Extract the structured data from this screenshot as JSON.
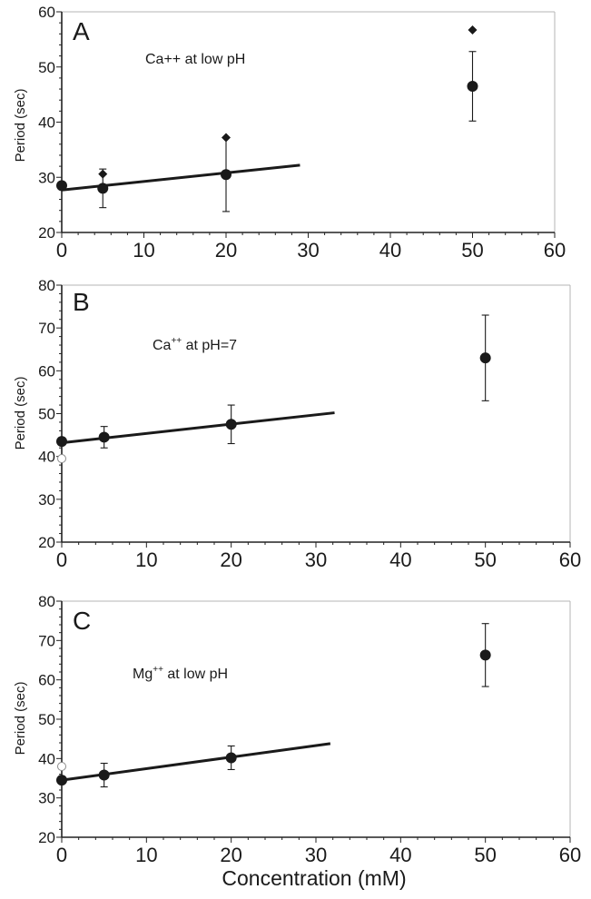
{
  "chart_data": [
    {
      "type": "scatter",
      "panel_label": "A",
      "annotation": {
        "ion": "Ca",
        "charge": "++",
        "charge_style": "inline",
        "condition": " at low pH"
      },
      "ylabel": "Period (sec)",
      "xlim": [
        0,
        60
      ],
      "ylim": [
        20,
        60
      ],
      "x_ticks": [
        "0",
        "10",
        "20",
        "30",
        "40",
        "50",
        "60"
      ],
      "y_ticks": [
        "20",
        "30",
        "40",
        "50",
        "60"
      ],
      "grid": false,
      "series": [
        {
          "marker": "circle-filled",
          "x": [
            0,
            5,
            20,
            50
          ],
          "y": [
            28.5,
            28,
            30.5,
            46.5
          ],
          "error": [
            [
              0,
              0
            ],
            [
              3.5,
              3.5
            ],
            [
              6.7,
              6.7
            ],
            [
              6.3,
              6.3
            ]
          ]
        },
        {
          "marker": "diamond-filled",
          "x": [
            5,
            20,
            50
          ],
          "y": [
            30.6,
            37.2,
            56.7
          ]
        }
      ],
      "fit_line": {
        "x": [
          0,
          29
        ],
        "y": [
          27.7,
          32.2
        ]
      }
    },
    {
      "type": "scatter",
      "panel_label": "B",
      "annotation": {
        "ion": "Ca",
        "charge": "++",
        "charge_style": "superscript",
        "condition": " at pH=7"
      },
      "ylabel": "Period (sec)",
      "xlim": [
        0,
        60
      ],
      "ylim": [
        20,
        80
      ],
      "x_ticks": [
        "0",
        "10",
        "20",
        "30",
        "40",
        "50",
        "60"
      ],
      "y_ticks": [
        "20",
        "30",
        "40",
        "50",
        "60",
        "70",
        "80"
      ],
      "grid": false,
      "series": [
        {
          "marker": "circle-filled",
          "x": [
            0,
            5,
            20,
            50
          ],
          "y": [
            43.5,
            44.5,
            47.5,
            63
          ],
          "error": [
            [
              0,
              0
            ],
            [
              2.5,
              2.5
            ],
            [
              4.5,
              4.5
            ],
            [
              10,
              10
            ]
          ]
        },
        {
          "marker": "circle-open",
          "x": [
            0
          ],
          "y": [
            39.5
          ]
        }
      ],
      "fit_line": {
        "x": [
          0,
          32.2
        ],
        "y": [
          43.2,
          50.2
        ]
      }
    },
    {
      "type": "scatter",
      "panel_label": "C",
      "annotation": {
        "ion": "Mg",
        "charge": "++",
        "charge_style": "superscript",
        "condition": " at low pH"
      },
      "ylabel": "Period (sec)",
      "xlabel": "Concentration (mM)",
      "xlim": [
        0,
        60
      ],
      "ylim": [
        20,
        80
      ],
      "x_ticks": [
        "0",
        "10",
        "20",
        "30",
        "40",
        "50",
        "60"
      ],
      "y_ticks": [
        "20",
        "30",
        "40",
        "50",
        "60",
        "70",
        "80"
      ],
      "grid": false,
      "series": [
        {
          "marker": "circle-filled",
          "x": [
            0,
            5,
            20,
            50
          ],
          "y": [
            34.5,
            35.8,
            40.2,
            66.3
          ],
          "error": [
            [
              0,
              0
            ],
            [
              3,
              3
            ],
            [
              3,
              3
            ],
            [
              8,
              8
            ]
          ]
        },
        {
          "marker": "circle-open",
          "x": [
            0
          ],
          "y": [
            38
          ]
        }
      ],
      "fit_line": {
        "x": [
          0,
          31.7
        ],
        "y": [
          34.5,
          43.8
        ]
      }
    }
  ],
  "colors": {
    "ink": "#1a1a1a",
    "axis": "#222222",
    "frame": "#b5b5b5",
    "open_marker": "#8c8c8c",
    "background": "#ffffff"
  }
}
